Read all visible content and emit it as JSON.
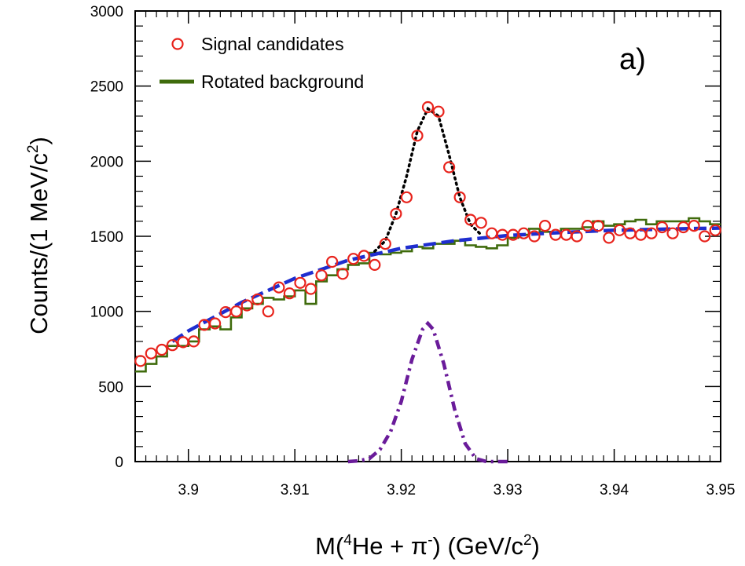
{
  "chart_data": {
    "type": "scatter",
    "panel_label": "a)",
    "xlabel": "M(⁴He + π⁻) (GeV/c²)",
    "ylabel": "Counts/(1 MeV/c²)",
    "xlim": [
      3.895,
      3.95
    ],
    "ylim": [
      0,
      3000
    ],
    "x_ticks": [
      3.9,
      3.91,
      3.92,
      3.93,
      3.94,
      3.95
    ],
    "x_tick_labels": [
      "3.9",
      "3.91",
      "3.92",
      "3.93",
      "3.94",
      "3.95"
    ],
    "y_ticks": [
      0,
      500,
      1000,
      1500,
      2000,
      2500,
      3000
    ],
    "y_tick_labels": [
      "0",
      "500",
      "1000",
      "1500",
      "2000",
      "2500",
      "3000"
    ],
    "grid": false,
    "legend_position": "top-left",
    "legend": [
      {
        "label": "Signal candidates",
        "marker": "open-circle",
        "color": "#e8231c"
      },
      {
        "label": "Rotated background",
        "marker": "line",
        "color": "#3f6b0c"
      }
    ],
    "colors": {
      "signal": "#e8231c",
      "background": "#3f6b0c",
      "background_fit": "#1f2ecf",
      "total_fit": "#000000",
      "signal_fit": "#6a1b9a"
    },
    "series": [
      {
        "name": "Signal candidates",
        "style": "markers",
        "x": [
          3.8955,
          3.8965,
          3.8975,
          3.8985,
          3.8995,
          3.9005,
          3.9015,
          3.9025,
          3.9035,
          3.9045,
          3.9055,
          3.9065,
          3.9075,
          3.9085,
          3.9095,
          3.9105,
          3.9115,
          3.9125,
          3.9135,
          3.9145,
          3.9155,
          3.9165,
          3.9175,
          3.9185,
          3.9195,
          3.9205,
          3.9215,
          3.9225,
          3.9235,
          3.9245,
          3.9255,
          3.9265,
          3.9275,
          3.9285,
          3.9295,
          3.9305,
          3.9315,
          3.9325,
          3.9335,
          3.9345,
          3.9355,
          3.9365,
          3.9375,
          3.9385,
          3.9395,
          3.9405,
          3.9415,
          3.9425,
          3.9435,
          3.9445,
          3.9455,
          3.9465,
          3.9475,
          3.9485,
          3.9495
        ],
        "y": [
          670,
          720,
          745,
          775,
          795,
          800,
          910,
          920,
          995,
          1000,
          1040,
          1080,
          1000,
          1160,
          1120,
          1190,
          1150,
          1240,
          1330,
          1250,
          1350,
          1370,
          1310,
          1450,
          1650,
          1760,
          2170,
          2360,
          2330,
          1960,
          1760,
          1610,
          1590,
          1520,
          1510,
          1510,
          1520,
          1500,
          1570,
          1510,
          1510,
          1500,
          1570,
          1570,
          1490,
          1540,
          1520,
          1510,
          1520,
          1560,
          1520,
          1560,
          1570,
          1500,
          1540
        ]
      },
      {
        "name": "Rotated background",
        "style": "step",
        "x": [
          3.895,
          3.896,
          3.897,
          3.898,
          3.899,
          3.9,
          3.901,
          3.902,
          3.903,
          3.904,
          3.905,
          3.906,
          3.907,
          3.908,
          3.909,
          3.91,
          3.911,
          3.912,
          3.913,
          3.914,
          3.915,
          3.916,
          3.917,
          3.918,
          3.919,
          3.92,
          3.921,
          3.922,
          3.923,
          3.924,
          3.925,
          3.926,
          3.927,
          3.928,
          3.929,
          3.93,
          3.931,
          3.932,
          3.933,
          3.934,
          3.935,
          3.936,
          3.937,
          3.938,
          3.939,
          3.94,
          3.941,
          3.942,
          3.943,
          3.944,
          3.945,
          3.946,
          3.947,
          3.948,
          3.949
        ],
        "y": [
          600,
          650,
          700,
          770,
          770,
          800,
          880,
          900,
          880,
          960,
          1020,
          1050,
          1090,
          1080,
          1100,
          1140,
          1050,
          1200,
          1240,
          1280,
          1310,
          1320,
          1390,
          1380,
          1390,
          1400,
          1430,
          1420,
          1450,
          1450,
          1470,
          1440,
          1430,
          1420,
          1440,
          1490,
          1510,
          1550,
          1530,
          1520,
          1550,
          1550,
          1560,
          1600,
          1570,
          1580,
          1600,
          1610,
          1580,
          1600,
          1600,
          1600,
          1620,
          1600,
          1580
        ]
      },
      {
        "name": "",
        "style": "dashed",
        "x": [
          3.8985,
          3.9,
          3.905,
          3.91,
          3.915,
          3.92,
          3.925,
          3.93,
          3.935,
          3.94,
          3.945,
          3.95
        ],
        "y": [
          800,
          870,
          1060,
          1220,
          1340,
          1420,
          1470,
          1505,
          1525,
          1540,
          1548,
          1555
        ]
      },
      {
        "name": "",
        "style": "dotted",
        "x": [
          3.9175,
          3.9185,
          3.9195,
          3.9205,
          3.9215,
          3.9225,
          3.9235,
          3.9245,
          3.9255,
          3.9265,
          3.9275
        ],
        "y": [
          1400,
          1470,
          1650,
          1900,
          2200,
          2350,
          2300,
          2040,
          1760,
          1580,
          1510
        ]
      },
      {
        "name": "",
        "style": "dash-dot",
        "x": [
          3.915,
          3.916,
          3.917,
          3.918,
          3.919,
          3.92,
          3.921,
          3.922,
          3.9225,
          3.923,
          3.924,
          3.925,
          3.926,
          3.927,
          3.928,
          3.929,
          3.93
        ],
        "y": [
          0,
          5,
          20,
          80,
          200,
          400,
          680,
          880,
          920,
          880,
          650,
          350,
          120,
          20,
          0,
          0,
          0
        ]
      }
    ]
  }
}
